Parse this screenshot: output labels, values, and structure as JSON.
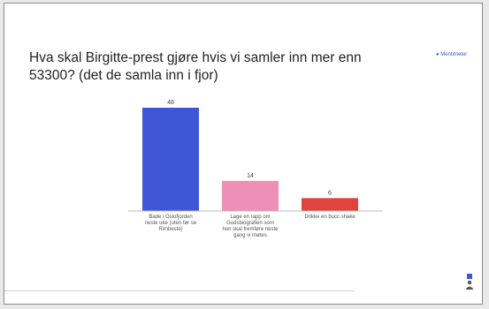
{
  "question": "Hva skal Birgitte-prest gjøre hvis vi samler inn mer enn 53300? (det de samla inn i fjor)",
  "brand": "Mentimeter",
  "colors": {
    "bar1": "#3f56d9",
    "bar2": "#ee8fb8",
    "bar3": "#e0443d"
  },
  "chart_data": {
    "type": "bar",
    "categories": [
      "Bade i Oslofjorden neste uke (uten før se Rimbeste)",
      "Lage en rapp om Gudsbiografien som hun skal fremføre neste gang vi møtes",
      "Drikke en bucc shake"
    ],
    "values": [
      48,
      14,
      6
    ],
    "ylim": [
      0,
      48
    ]
  },
  "icons": {
    "user": "person-icon"
  }
}
